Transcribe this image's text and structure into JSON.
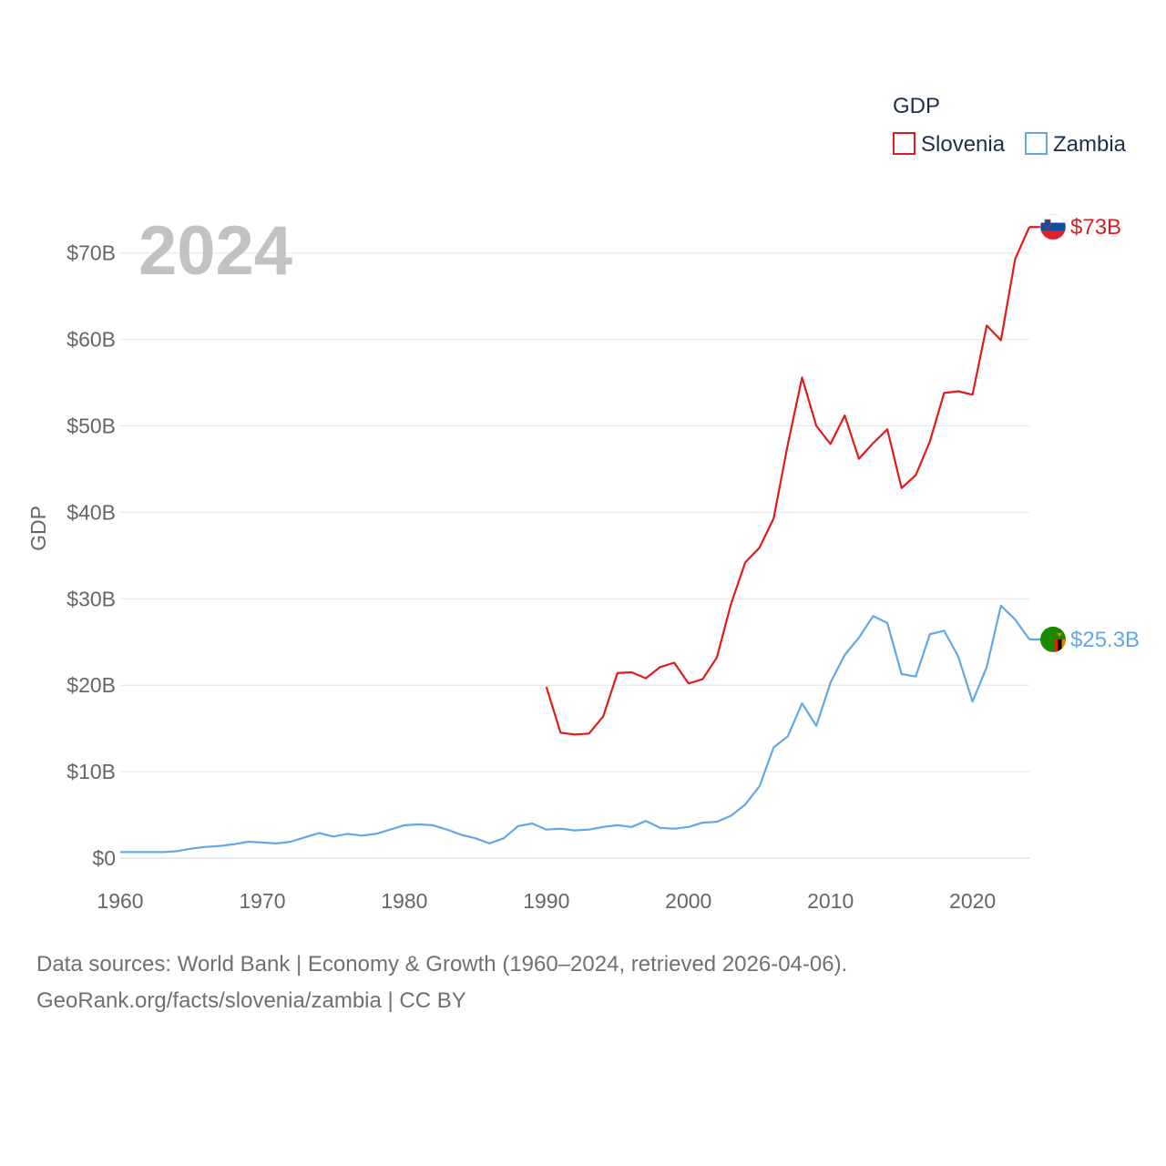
{
  "chart_data": {
    "type": "line",
    "year_label": "2024",
    "ylabel": "GDP",
    "xlabel": "",
    "xlim": [
      1960,
      2024
    ],
    "ylim": [
      0,
      72
    ],
    "x_ticks": [
      1960,
      1970,
      1980,
      1990,
      2000,
      2010,
      2020
    ],
    "y_ticks": [
      {
        "value": 0,
        "label": "$0"
      },
      {
        "value": 10,
        "label": "$10B"
      },
      {
        "value": 20,
        "label": "$20B"
      },
      {
        "value": 30,
        "label": "$30B"
      },
      {
        "value": 40,
        "label": "$40B"
      },
      {
        "value": 50,
        "label": "$50B"
      },
      {
        "value": 60,
        "label": "$60B"
      },
      {
        "value": 70,
        "label": "$70B"
      }
    ],
    "legend": {
      "title": "GDP",
      "position": "top-right"
    },
    "series": [
      {
        "name": "Slovenia",
        "color": "#e31a1c",
        "end_label": "$73B",
        "flag_icon": "slovenia-flag-icon",
        "x": [
          1990,
          1991,
          1992,
          1993,
          1994,
          1995,
          1996,
          1997,
          1998,
          1999,
          2000,
          2001,
          2002,
          2003,
          2004,
          2005,
          2006,
          2007,
          2008,
          2009,
          2010,
          2011,
          2012,
          2013,
          2014,
          2015,
          2016,
          2017,
          2018,
          2019,
          2020,
          2021,
          2022,
          2023,
          2024
        ],
        "values": [
          19.8,
          14.5,
          14.3,
          14.4,
          16.4,
          21.4,
          21.5,
          20.8,
          22.1,
          22.6,
          20.2,
          20.7,
          23.2,
          29.4,
          34.2,
          35.9,
          39.3,
          47.9,
          55.6,
          50.0,
          47.9,
          51.2,
          46.2,
          48.0,
          49.6,
          42.8,
          44.3,
          48.2,
          53.8,
          54.0,
          53.6,
          61.6,
          59.9,
          69.3,
          73.0
        ]
      },
      {
        "name": "Zambia",
        "color": "#62a8e5",
        "end_label": "$25.3B",
        "flag_icon": "zambia-flag-icon",
        "x": [
          1960,
          1961,
          1962,
          1963,
          1964,
          1965,
          1966,
          1967,
          1968,
          1969,
          1970,
          1971,
          1972,
          1973,
          1974,
          1975,
          1976,
          1977,
          1978,
          1979,
          1980,
          1981,
          1982,
          1983,
          1984,
          1985,
          1986,
          1987,
          1988,
          1989,
          1990,
          1991,
          1992,
          1993,
          1994,
          1995,
          1996,
          1997,
          1998,
          1999,
          2000,
          2001,
          2002,
          2003,
          2004,
          2005,
          2006,
          2007,
          2008,
          2009,
          2010,
          2011,
          2012,
          2013,
          2014,
          2015,
          2016,
          2017,
          2018,
          2019,
          2020,
          2021,
          2022,
          2023,
          2024
        ],
        "values": [
          0.7,
          0.7,
          0.7,
          0.7,
          0.8,
          1.1,
          1.3,
          1.4,
          1.6,
          1.9,
          1.8,
          1.7,
          1.9,
          2.4,
          2.9,
          2.5,
          2.8,
          2.6,
          2.8,
          3.3,
          3.8,
          3.9,
          3.8,
          3.3,
          2.7,
          2.3,
          1.7,
          2.3,
          3.7,
          4.0,
          3.3,
          3.4,
          3.2,
          3.3,
          3.6,
          3.8,
          3.6,
          4.3,
          3.5,
          3.4,
          3.6,
          4.1,
          4.2,
          4.9,
          6.2,
          8.3,
          12.8,
          14.1,
          17.9,
          15.3,
          20.3,
          23.5,
          25.5,
          28.0,
          27.2,
          21.3,
          21.0,
          25.9,
          26.3,
          23.3,
          18.1,
          22.1,
          29.2,
          27.6,
          25.3
        ]
      }
    ]
  },
  "footer": {
    "line1": "Data sources: World Bank | Economy & Growth (1960–2024, retrieved 2026-04-06).",
    "line2": "GeoRank.org/facts/slovenia/zambia | CC BY"
  }
}
